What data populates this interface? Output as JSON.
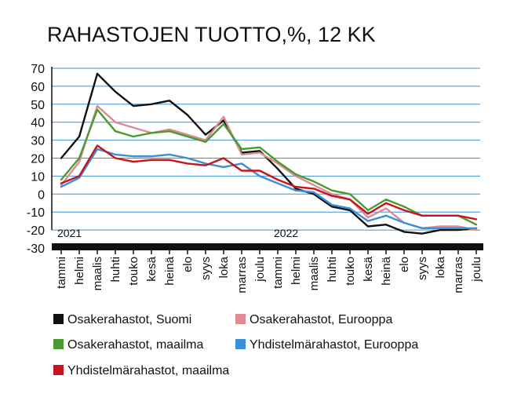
{
  "chart_data": {
    "type": "line",
    "title": "RAHASTOJEN TUOTTO,%, 12 KK",
    "xlabel": "",
    "ylabel": "",
    "ylim": [
      -30,
      70
    ],
    "yticks": [
      70,
      60,
      50,
      40,
      30,
      20,
      10,
      0,
      -10,
      -20,
      -30
    ],
    "grid": true,
    "legend_position": "bottom",
    "year_labels": [
      {
        "text": "2021",
        "category_index": 0
      },
      {
        "text": "2022",
        "category_index": 12
      }
    ],
    "categories": [
      "tammi",
      "helmi",
      "maalis",
      "huhti",
      "touko",
      "kesä",
      "heinä",
      "elo",
      "syys",
      "loka",
      "marras",
      "joulu",
      "tammi",
      "helmi",
      "maalis",
      "huhti",
      "touko",
      "kesä",
      "heinä",
      "elo",
      "syys",
      "loka",
      "marras",
      "joulu"
    ],
    "series": [
      {
        "name": "Osakerahastot, Suomi",
        "color": "#111111",
        "values": [
          20,
          32,
          67,
          57,
          49,
          50,
          52,
          44,
          33,
          41,
          23,
          24,
          14,
          3,
          0,
          -7,
          -9,
          -18,
          -17,
          -21,
          -22,
          -20,
          -20,
          -19
        ]
      },
      {
        "name": "Osakerahastot, Eurooppa",
        "color": "#e08a92",
        "values": [
          5,
          18,
          49,
          40,
          37,
          34,
          36,
          33,
          30,
          43,
          22,
          23,
          17,
          10,
          5,
          0,
          -3,
          -13,
          -8,
          -16,
          -19,
          -18,
          -18,
          -20
        ]
      },
      {
        "name": "Osakerahastot, maailma",
        "color": "#4a9a32",
        "values": [
          8,
          20,
          47,
          35,
          32,
          34,
          35,
          32,
          29,
          39,
          25,
          26,
          18,
          11,
          7,
          2,
          0,
          -9,
          -3,
          -7,
          -12,
          -12,
          -12,
          -17
        ]
      },
      {
        "name": "Yhdistelmärahastot, Eurooppa",
        "color": "#3a90d8",
        "values": [
          4,
          9,
          25,
          22,
          21,
          21,
          22,
          20,
          17,
          15,
          17,
          10,
          6,
          2,
          1,
          -6,
          -8,
          -15,
          -12,
          -16,
          -19,
          -19,
          -19,
          -19
        ]
      },
      {
        "name": "Yhdistelmärahastot, maailma",
        "color": "#c8141e",
        "values": [
          6,
          10,
          27,
          20,
          18,
          19,
          19,
          17,
          16,
          20,
          13,
          13,
          8,
          4,
          3,
          -1,
          -3,
          -11,
          -5,
          -9,
          -12,
          -12,
          -12,
          -14
        ]
      }
    ]
  }
}
